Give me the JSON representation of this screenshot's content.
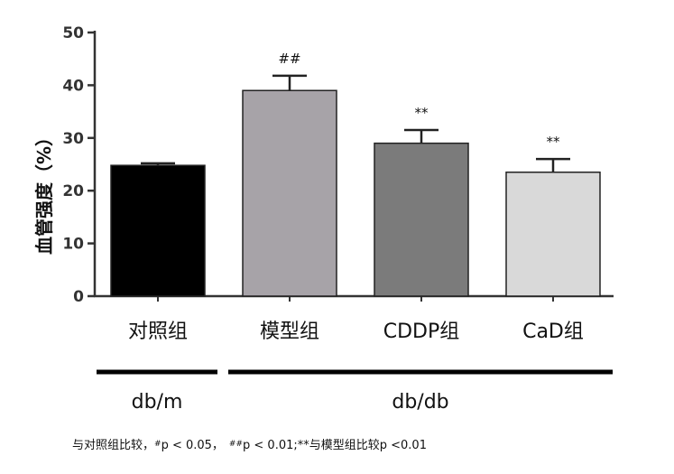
{
  "chart_data": {
    "type": "bar",
    "ylabel": "血管强度（%）",
    "ylim": [
      0,
      50
    ],
    "yticks": [
      0,
      10,
      20,
      30,
      40,
      50
    ],
    "categories": [
      "对照组",
      "模型组",
      "CDDP组",
      "CaD组"
    ],
    "values": [
      24.8,
      39.0,
      29.0,
      23.5
    ],
    "errors": [
      0.4,
      2.8,
      2.5,
      2.5
    ],
    "colors": [
      "#000000",
      "#a7a3a8",
      "#7b7b7b",
      "#d9d9d9"
    ],
    "significance": [
      "",
      "##",
      "**",
      "**"
    ],
    "groups": [
      {
        "label": "db/m",
        "categories": [
          "对照组"
        ]
      },
      {
        "label": "db/db",
        "categories": [
          "模型组",
          "CDDP组",
          "CaD组"
        ]
      }
    ]
  },
  "footnote": {
    "part1": "与对照组比较，",
    "sym1": "#",
    "part2": "p < 0.05，",
    "sym2": "##",
    "part3": "p < 0.01;**与模型组比较p <0.01"
  }
}
